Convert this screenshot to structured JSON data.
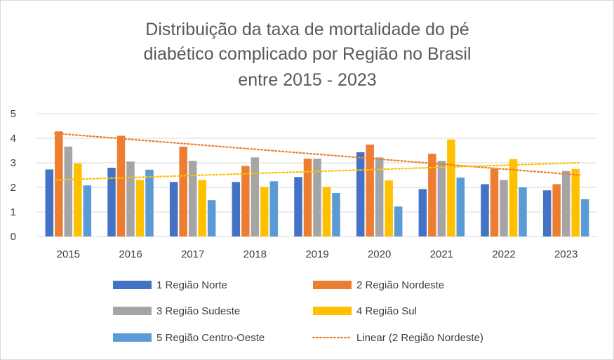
{
  "chart_data": {
    "type": "bar",
    "title_lines": [
      "Distribuição da taxa de mortalidade do pé",
      "diabético complicado por Região no Brasil",
      "entre 2015 - 2023"
    ],
    "categories": [
      "2015",
      "2016",
      "2017",
      "2018",
      "2019",
      "2020",
      "2021",
      "2022",
      "2023"
    ],
    "ylim": [
      0,
      5
    ],
    "yticks": [
      "0",
      "1",
      "2",
      "3",
      "4",
      "5"
    ],
    "grid": true,
    "legend_position": "bottom",
    "series": [
      {
        "name": "1 Região Norte",
        "color": "#4472C4",
        "values": [
          2.73,
          2.8,
          2.22,
          2.22,
          2.42,
          3.43,
          1.93,
          2.13,
          1.88
        ]
      },
      {
        "name": "2 Região Nordeste",
        "color": "#ED7D31",
        "values": [
          4.28,
          4.1,
          3.66,
          2.87,
          3.17,
          3.74,
          3.37,
          2.75,
          2.13
        ]
      },
      {
        "name": "3 Região Sudeste",
        "color": "#A5A5A5",
        "values": [
          3.66,
          3.05,
          3.08,
          3.22,
          3.17,
          3.22,
          3.08,
          2.3,
          2.67
        ]
      },
      {
        "name": "4 Região Sul",
        "color": "#FFC000",
        "values": [
          2.97,
          2.3,
          2.3,
          2.02,
          2.02,
          2.28,
          3.95,
          3.15,
          2.75
        ]
      },
      {
        "name": "5 Região Centro-Oeste",
        "color": "#5B9BD5",
        "values": [
          2.08,
          2.72,
          1.48,
          2.25,
          1.77,
          1.22,
          2.4,
          2.0,
          1.52
        ]
      }
    ],
    "trendlines": [
      {
        "name": "Linear (2 Região Nordeste)",
        "color": "#ED7D31",
        "start": 4.2,
        "end": 2.5,
        "in_legend": true
      },
      {
        "name": "",
        "color": "#FFC000",
        "start": 2.3,
        "end": 3.0,
        "in_legend": false
      }
    ]
  }
}
